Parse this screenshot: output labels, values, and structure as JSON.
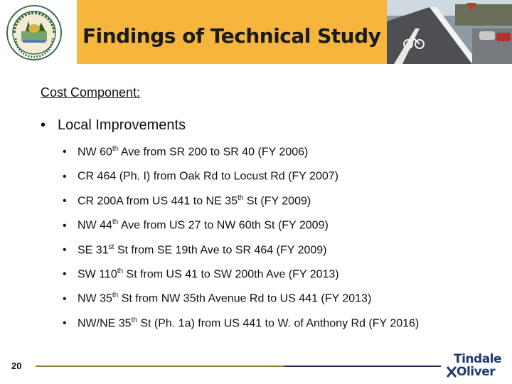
{
  "header": {
    "title": "Findings of Technical Study"
  },
  "content": {
    "heading": "Cost Component:",
    "main_bullet": "Local Improvements",
    "items": [
      {
        "pre": "NW 60",
        "sup": "th",
        "post": " Ave from SR 200 to SR 40 (FY 2006)"
      },
      {
        "pre": "CR 464 (Ph. I) from Oak Rd to Locust Rd (FY 2007)",
        "sup": "",
        "post": ""
      },
      {
        "pre": "CR 200A from US 441 to NE 35",
        "sup": "th",
        "post": " St (FY 2009)"
      },
      {
        "pre": "NW 44",
        "sup": "th",
        "post": " Ave from US 27 to NW 60th St (FY 2009)"
      },
      {
        "pre": "SE 31",
        "sup": "st",
        "post": " St from SE 19th Ave to SR 464 (FY 2009)"
      },
      {
        "pre": "SW 110",
        "sup": "th",
        "post": " St from US 41 to SW 200th Ave (FY 2013)"
      },
      {
        "pre": "NW 35",
        "sup": "th",
        "post": " St from NW 35th Avenue Rd to US 441 (FY 2013)"
      },
      {
        "pre": "NW/NE 35",
        "sup": "th",
        "post": " St (Ph. 1a) from US 441 to W. of Anthony Rd (FY 2016)"
      }
    ]
  },
  "footer": {
    "page_number": "20",
    "logo_line1": "Tindale",
    "logo_line2": "Oliver"
  },
  "colors": {
    "title_band": "#f6b53c",
    "logo_blue": "#1f3a6e"
  }
}
